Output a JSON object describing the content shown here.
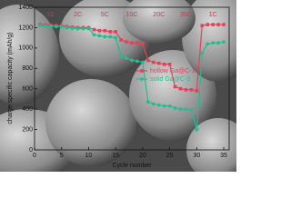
{
  "chart_data": {
    "type": "line",
    "x_label": "Cycle number",
    "y_label": "charge specific capacity (mAh/g)",
    "rate_labels": [
      "1C",
      "2C",
      "5C",
      "10C",
      "20C",
      "35C",
      "1C"
    ],
    "rate_color": "#e8303a",
    "x": [
      1,
      2,
      3,
      4,
      5,
      6,
      7,
      8,
      9,
      10,
      11,
      12,
      13,
      14,
      15,
      16,
      17,
      18,
      19,
      20,
      21,
      22,
      23,
      24,
      25,
      26,
      27,
      28,
      29,
      30,
      31,
      32,
      33,
      34,
      35
    ],
    "series": [
      {
        "name": "hollow Ga@C-1",
        "color": "#e8405a",
        "marker": "square",
        "values": [
          1230,
          1225,
          1225,
          1220,
          1220,
          1210,
          1205,
          1200,
          1200,
          1200,
          1180,
          1170,
          1170,
          1160,
          1160,
          1080,
          1060,
          1050,
          1050,
          1040,
          880,
          860,
          850,
          840,
          840,
          620,
          600,
          590,
          590,
          580,
          1220,
          1230,
          1230,
          1230,
          1230
        ]
      },
      {
        "name": "solid Ga@C-3",
        "color": "#1fbf8f",
        "marker": "circle",
        "values": [
          1220,
          1215,
          1215,
          1210,
          1210,
          1200,
          1195,
          1190,
          1190,
          1190,
          1130,
          1120,
          1110,
          1110,
          1100,
          920,
          900,
          880,
          870,
          860,
          470,
          450,
          440,
          430,
          430,
          410,
          400,
          400,
          390,
          200,
          950,
          1040,
          1050,
          1050,
          1060
        ]
      }
    ],
    "xlim": [
      0,
      36
    ],
    "xticks": [
      0,
      5,
      10,
      15,
      20,
      25,
      30,
      35
    ],
    "ylim": [
      0,
      1400
    ],
    "yticks": [
      0,
      200,
      400,
      600,
      800,
      1000,
      1200,
      1400
    ],
    "legend": "center"
  }
}
